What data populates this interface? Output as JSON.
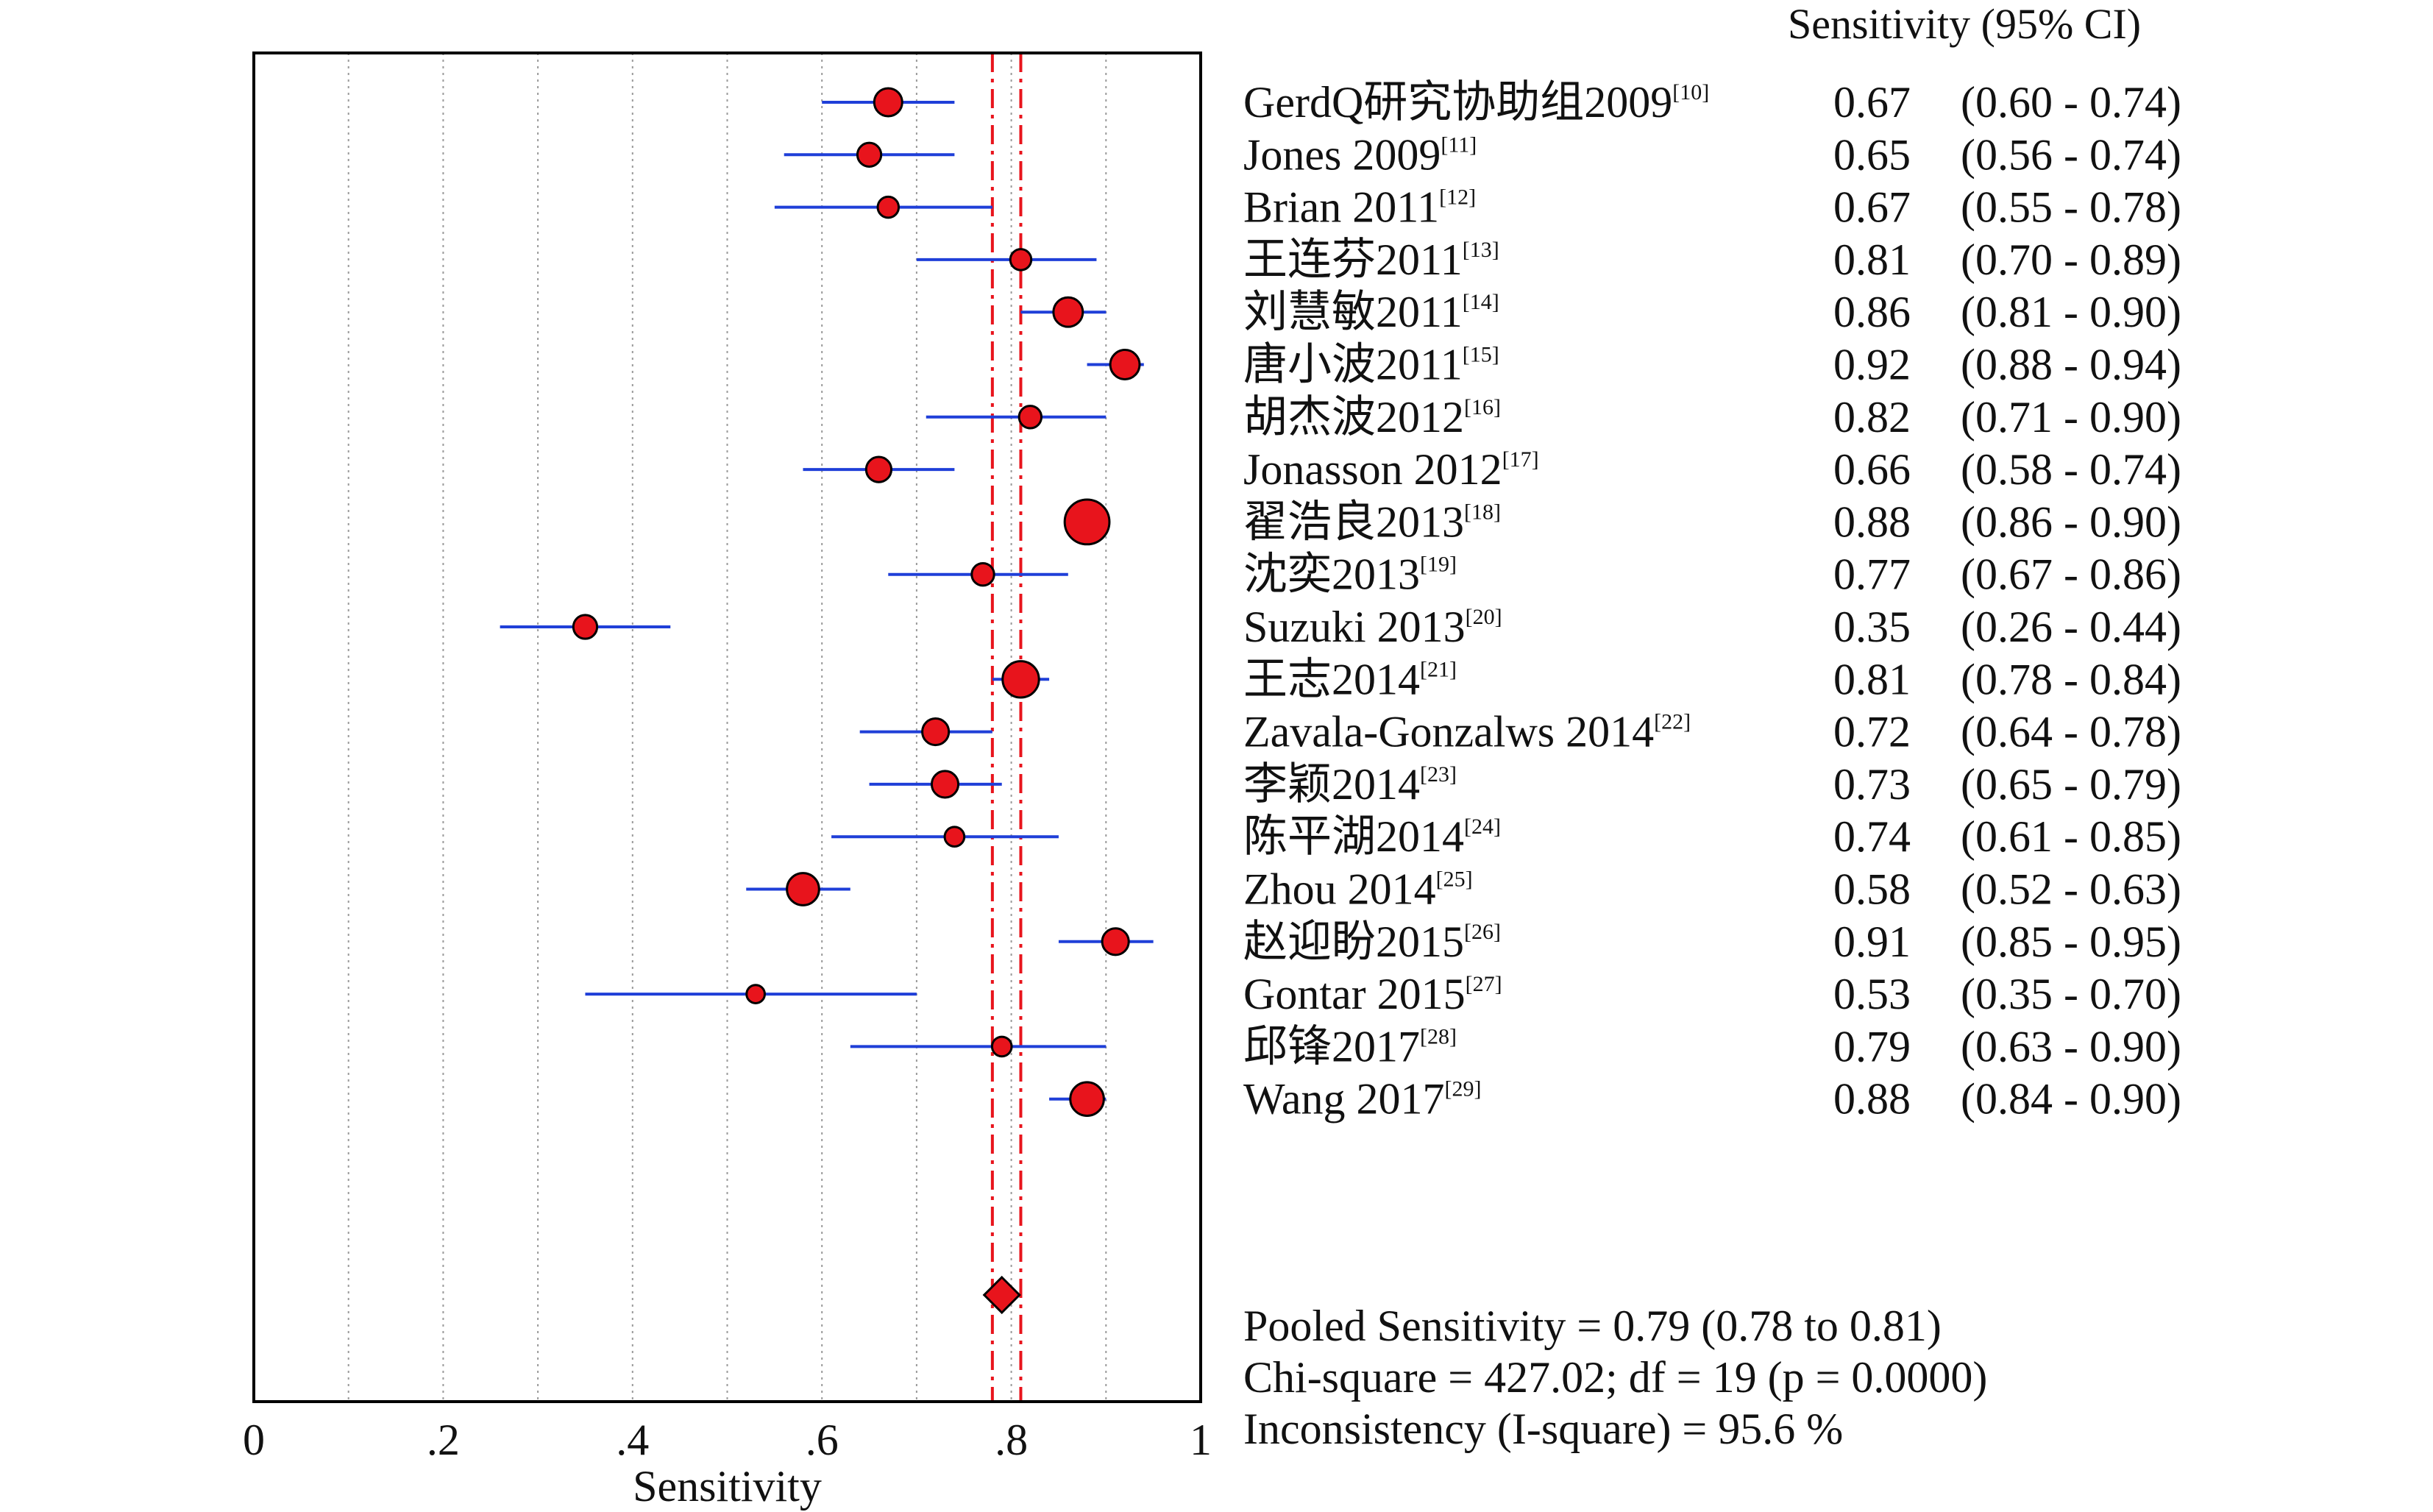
{
  "chart_data": {
    "type": "forest",
    "xlabel": "Sensitivity",
    "xlim": [
      0,
      1
    ],
    "xticks": [
      0,
      0.2,
      0.4,
      0.6,
      0.8,
      1
    ],
    "xtick_labels": [
      "0",
      ".2",
      ".4",
      ".6",
      ".8",
      "1"
    ],
    "grid": "vertical-dotted",
    "header": "Sensitivity (95% CI)",
    "studies": [
      {
        "name": "GerdQ研究协助组2009",
        "ref": "[10]",
        "value": 0.67,
        "lower": 0.6,
        "upper": 0.74,
        "value_text": "0.67",
        "ci_text": "(0.60 - 0.74)",
        "weight": 1.0
      },
      {
        "name": "Jones 2009",
        "ref": "[11]",
        "value": 0.65,
        "lower": 0.56,
        "upper": 0.74,
        "value_text": "0.65",
        "ci_text": "(0.56 - 0.74)",
        "weight": 0.85
      },
      {
        "name": "Brian 2011",
        "ref": "[12]",
        "value": 0.67,
        "lower": 0.55,
        "upper": 0.78,
        "value_text": "0.67",
        "ci_text": "(0.55 - 0.78)",
        "weight": 0.75
      },
      {
        "name": "王连芬2011",
        "ref": "[13]",
        "value": 0.81,
        "lower": 0.7,
        "upper": 0.89,
        "value_text": "0.81",
        "ci_text": "(0.70 - 0.89)",
        "weight": 0.75
      },
      {
        "name": "刘慧敏2011",
        "ref": "[14]",
        "value": 0.86,
        "lower": 0.81,
        "upper": 0.9,
        "value_text": "0.86",
        "ci_text": "(0.81 - 0.90)",
        "weight": 1.05
      },
      {
        "name": "唐小波2011",
        "ref": "[15]",
        "value": 0.92,
        "lower": 0.88,
        "upper": 0.94,
        "value_text": "0.92",
        "ci_text": "(0.88 - 0.94)",
        "weight": 1.05
      },
      {
        "name": "胡杰波2012",
        "ref": "[16]",
        "value": 0.82,
        "lower": 0.71,
        "upper": 0.9,
        "value_text": "0.82",
        "ci_text": "(0.71 - 0.90)",
        "weight": 0.8
      },
      {
        "name": "Jonasson 2012",
        "ref": "[17]",
        "value": 0.66,
        "lower": 0.58,
        "upper": 0.74,
        "value_text": "0.66",
        "ci_text": "(0.58 - 0.74)",
        "weight": 0.9
      },
      {
        "name": "翟浩良2013",
        "ref": "[18]",
        "value": 0.88,
        "lower": 0.86,
        "upper": 0.9,
        "value_text": "0.88",
        "ci_text": "(0.86 - 0.90)",
        "weight": 1.6
      },
      {
        "name": "沈奕2013",
        "ref": "[19]",
        "value": 0.77,
        "lower": 0.67,
        "upper": 0.86,
        "value_text": "0.77",
        "ci_text": "(0.67 - 0.86)",
        "weight": 0.8
      },
      {
        "name": "Suzuki 2013",
        "ref": "[20]",
        "value": 0.35,
        "lower": 0.26,
        "upper": 0.44,
        "value_text": "0.35",
        "ci_text": "(0.26 - 0.44)",
        "weight": 0.85
      },
      {
        "name": "王志2014",
        "ref": "[21]",
        "value": 0.81,
        "lower": 0.78,
        "upper": 0.84,
        "value_text": "0.81",
        "ci_text": "(0.78 - 0.84)",
        "weight": 1.3
      },
      {
        "name": "Zavala-Gonzalws 2014",
        "ref": "[22]",
        "value": 0.72,
        "lower": 0.64,
        "upper": 0.78,
        "value_text": "0.72",
        "ci_text": "(0.64 - 0.78)",
        "weight": 0.95
      },
      {
        "name": "李颖2014",
        "ref": "[23]",
        "value": 0.73,
        "lower": 0.65,
        "upper": 0.79,
        "value_text": "0.73",
        "ci_text": "(0.65 - 0.79)",
        "weight": 0.95
      },
      {
        "name": "陈平湖2014",
        "ref": "[24]",
        "value": 0.74,
        "lower": 0.61,
        "upper": 0.85,
        "value_text": "0.74",
        "ci_text": "(0.61 - 0.85)",
        "weight": 0.7
      },
      {
        "name": "Zhou 2014",
        "ref": "[25]",
        "value": 0.58,
        "lower": 0.52,
        "upper": 0.63,
        "value_text": "0.58",
        "ci_text": "(0.52 - 0.63)",
        "weight": 1.15
      },
      {
        "name": "赵迎盼2015",
        "ref": "[26]",
        "value": 0.91,
        "lower": 0.85,
        "upper": 0.95,
        "value_text": "0.91",
        "ci_text": "(0.85 - 0.95)",
        "weight": 0.95
      },
      {
        "name": "Gontar 2015",
        "ref": "[27]",
        "value": 0.53,
        "lower": 0.35,
        "upper": 0.7,
        "value_text": "0.53",
        "ci_text": "(0.35 - 0.70)",
        "weight": 0.65
      },
      {
        "name": "邱锋2017",
        "ref": "[28]",
        "value": 0.79,
        "lower": 0.63,
        "upper": 0.9,
        "value_text": "0.79",
        "ci_text": "(0.63 - 0.90)",
        "weight": 0.7
      },
      {
        "name": "Wang 2017",
        "ref": "[29]",
        "value": 0.88,
        "lower": 0.84,
        "upper": 0.9,
        "value_text": "0.88",
        "ci_text": "(0.84 - 0.90)",
        "weight": 1.2
      }
    ],
    "pooled": {
      "value": 0.79,
      "lower": 0.78,
      "upper": 0.81
    },
    "summary_lines": [
      "Pooled Sensitivity = 0.79 (0.78 to 0.81)",
      "Chi-square = 427.02; df =  19 (p = 0.0000)",
      "Inconsistency (I-square) = 95.6 %"
    ],
    "colors": {
      "marker_fill": "#e8141c",
      "ci_line": "#1f3fd8",
      "pooled_line": "#e8141c",
      "grid": "#9a9a9a",
      "axis": "#000000"
    }
  }
}
